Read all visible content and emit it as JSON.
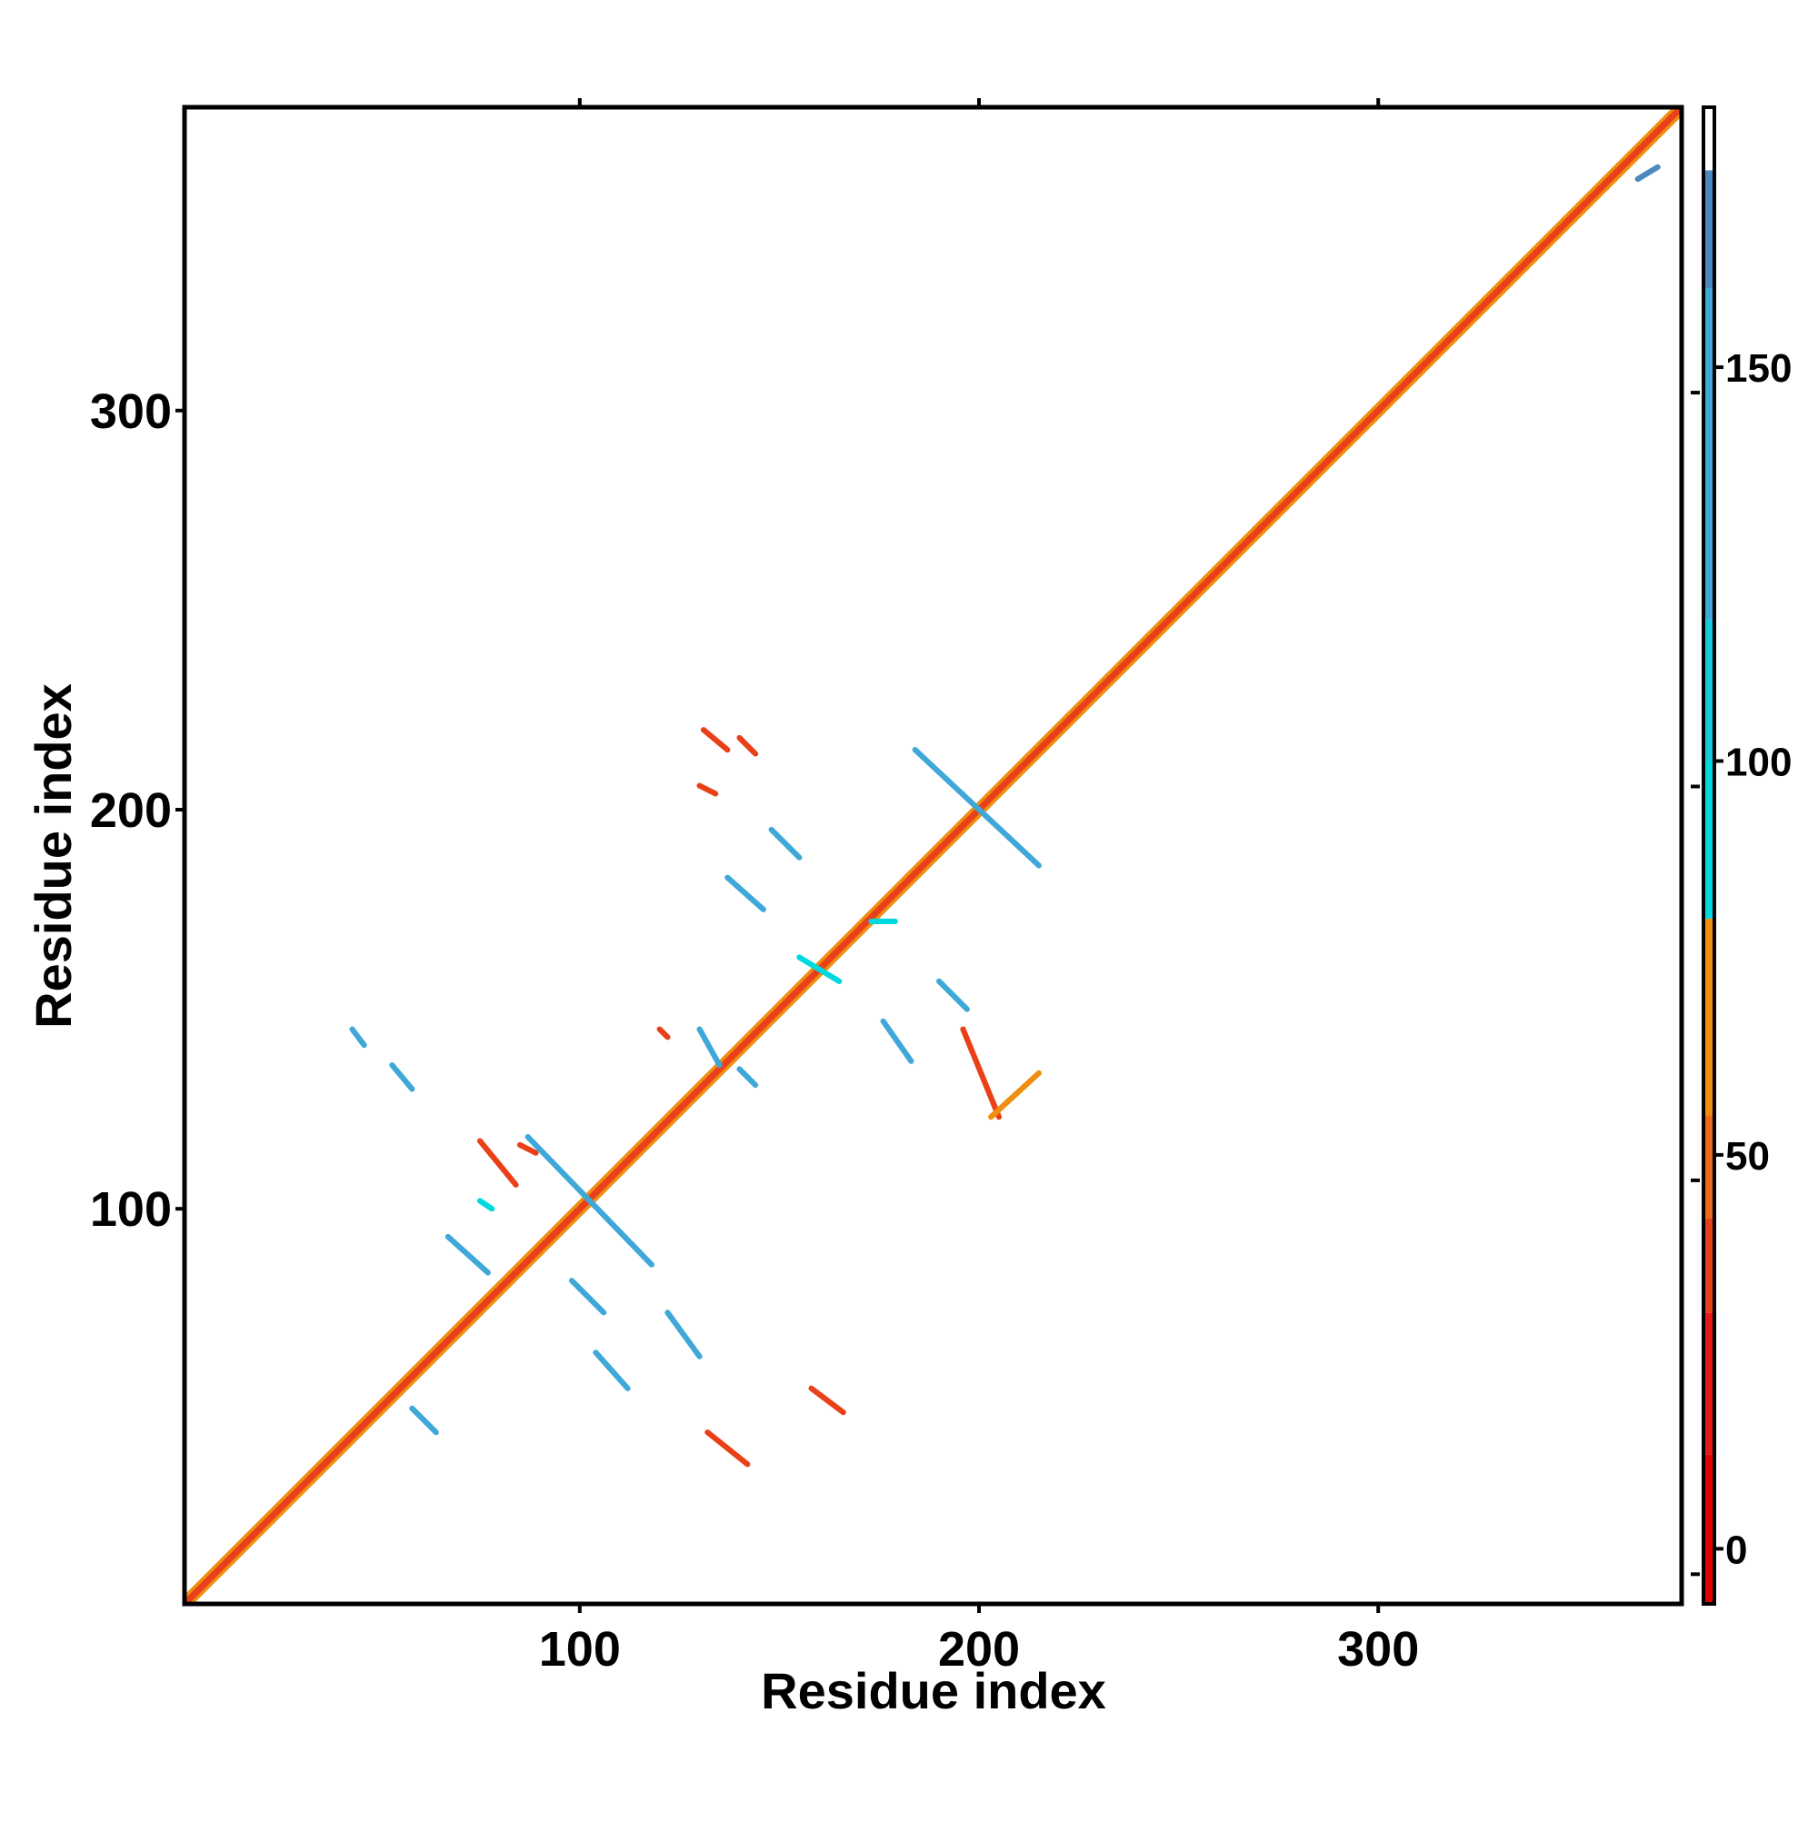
{
  "colors": {
    "colorbar_stops": [
      "#e00000",
      "#e81818",
      "#e8401a",
      "#ec6a1c",
      "#ef8e10",
      "#00d8e0",
      "#18c8dc",
      "#3fa8d8",
      "#4a88c0",
      "#ffffff"
    ]
  },
  "chart_data": {
    "type": "heatmap",
    "xlabel": "Residue index",
    "ylabel": "Residue index",
    "xlim": [
      1,
      376
    ],
    "ylim": [
      1,
      376
    ],
    "x_ticks": [
      100,
      200,
      300
    ],
    "y_ticks": [
      100,
      200,
      300
    ],
    "colorbar": {
      "range": [
        -7,
        183
      ],
      "ticks": [
        0,
        50,
        100,
        150
      ]
    },
    "diagonal_band": {
      "from": 1,
      "to": 376,
      "dominant_color": "#e8401a",
      "secondary_color": "#ef8e10"
    },
    "contact_segments": [
      {
        "start": [
          58,
          50
        ],
        "end": [
          64,
          44
        ],
        "color": "#3fa8d8"
      },
      {
        "start": [
          67,
          93
        ],
        "end": [
          77,
          84
        ],
        "color": "#3fa8d8"
      },
      {
        "start": [
          75,
          117
        ],
        "end": [
          84,
          106
        ],
        "color": "#ea4018"
      },
      {
        "start": [
          85,
          116
        ],
        "end": [
          89,
          114
        ],
        "color": "#ea4018"
      },
      {
        "start": [
          75,
          102
        ],
        "end": [
          78,
          100
        ],
        "color": "#00d8e0"
      },
      {
        "start": [
          104,
          64
        ],
        "end": [
          112,
          55
        ],
        "color": "#3fa8d8"
      },
      {
        "start": [
          122,
          74
        ],
        "end": [
          130,
          63
        ],
        "color": "#3fa8d8"
      },
      {
        "start": [
          132,
          44
        ],
        "end": [
          142,
          36
        ],
        "color": "#ea4018"
      },
      {
        "start": [
          158,
          55
        ],
        "end": [
          166,
          49
        ],
        "color": "#ea4018"
      },
      {
        "start": [
          87,
          118
        ],
        "end": [
          118,
          86
        ],
        "color": "#3fa8d8"
      },
      {
        "start": [
          98,
          82
        ],
        "end": [
          106,
          74
        ],
        "color": "#3fa8d8"
      },
      {
        "start": [
          43,
          145
        ],
        "end": [
          46,
          141
        ],
        "color": "#3fa8d8"
      },
      {
        "start": [
          53,
          136
        ],
        "end": [
          58,
          130
        ],
        "color": "#3fa8d8"
      },
      {
        "start": [
          137,
          183
        ],
        "end": [
          146,
          175
        ],
        "color": "#3fa8d8"
      },
      {
        "start": [
          148,
          195
        ],
        "end": [
          155,
          188
        ],
        "color": "#3fa8d8"
      },
      {
        "start": [
          140,
          218
        ],
        "end": [
          144,
          214
        ],
        "color": "#ea4018"
      },
      {
        "start": [
          184,
          215
        ],
        "end": [
          215,
          186
        ],
        "color": "#3fa8d8"
      },
      {
        "start": [
          176,
          147
        ],
        "end": [
          183,
          137
        ],
        "color": "#3fa8d8"
      },
      {
        "start": [
          190,
          157
        ],
        "end": [
          197,
          150
        ],
        "color": "#3fa8d8"
      },
      {
        "start": [
          196,
          145
        ],
        "end": [
          205,
          123
        ],
        "color": "#ea4018"
      },
      {
        "start": [
          203,
          123
        ],
        "end": [
          215,
          134
        ],
        "color": "#ef8e10"
      },
      {
        "start": [
          130,
          206
        ],
        "end": [
          134,
          204
        ],
        "color": "#ea4018"
      },
      {
        "start": [
          131,
          220
        ],
        "end": [
          137,
          215
        ],
        "color": "#ea4018"
      },
      {
        "start": [
          140,
          135
        ],
        "end": [
          144,
          131
        ],
        "color": "#3fa8d8"
      },
      {
        "start": [
          130,
          145
        ],
        "end": [
          135,
          136
        ],
        "color": "#3fa8d8"
      },
      {
        "start": [
          120,
          145
        ],
        "end": [
          122,
          143
        ],
        "color": "#ea4018"
      },
      {
        "start": [
          173,
          172
        ],
        "end": [
          179,
          172
        ],
        "color": "#00d8e0"
      },
      {
        "start": [
          155,
          163
        ],
        "end": [
          165,
          157
        ],
        "color": "#00d8e0"
      },
      {
        "start": [
          365,
          358
        ],
        "end": [
          370,
          361
        ],
        "color": "#4a88c0"
      }
    ]
  }
}
